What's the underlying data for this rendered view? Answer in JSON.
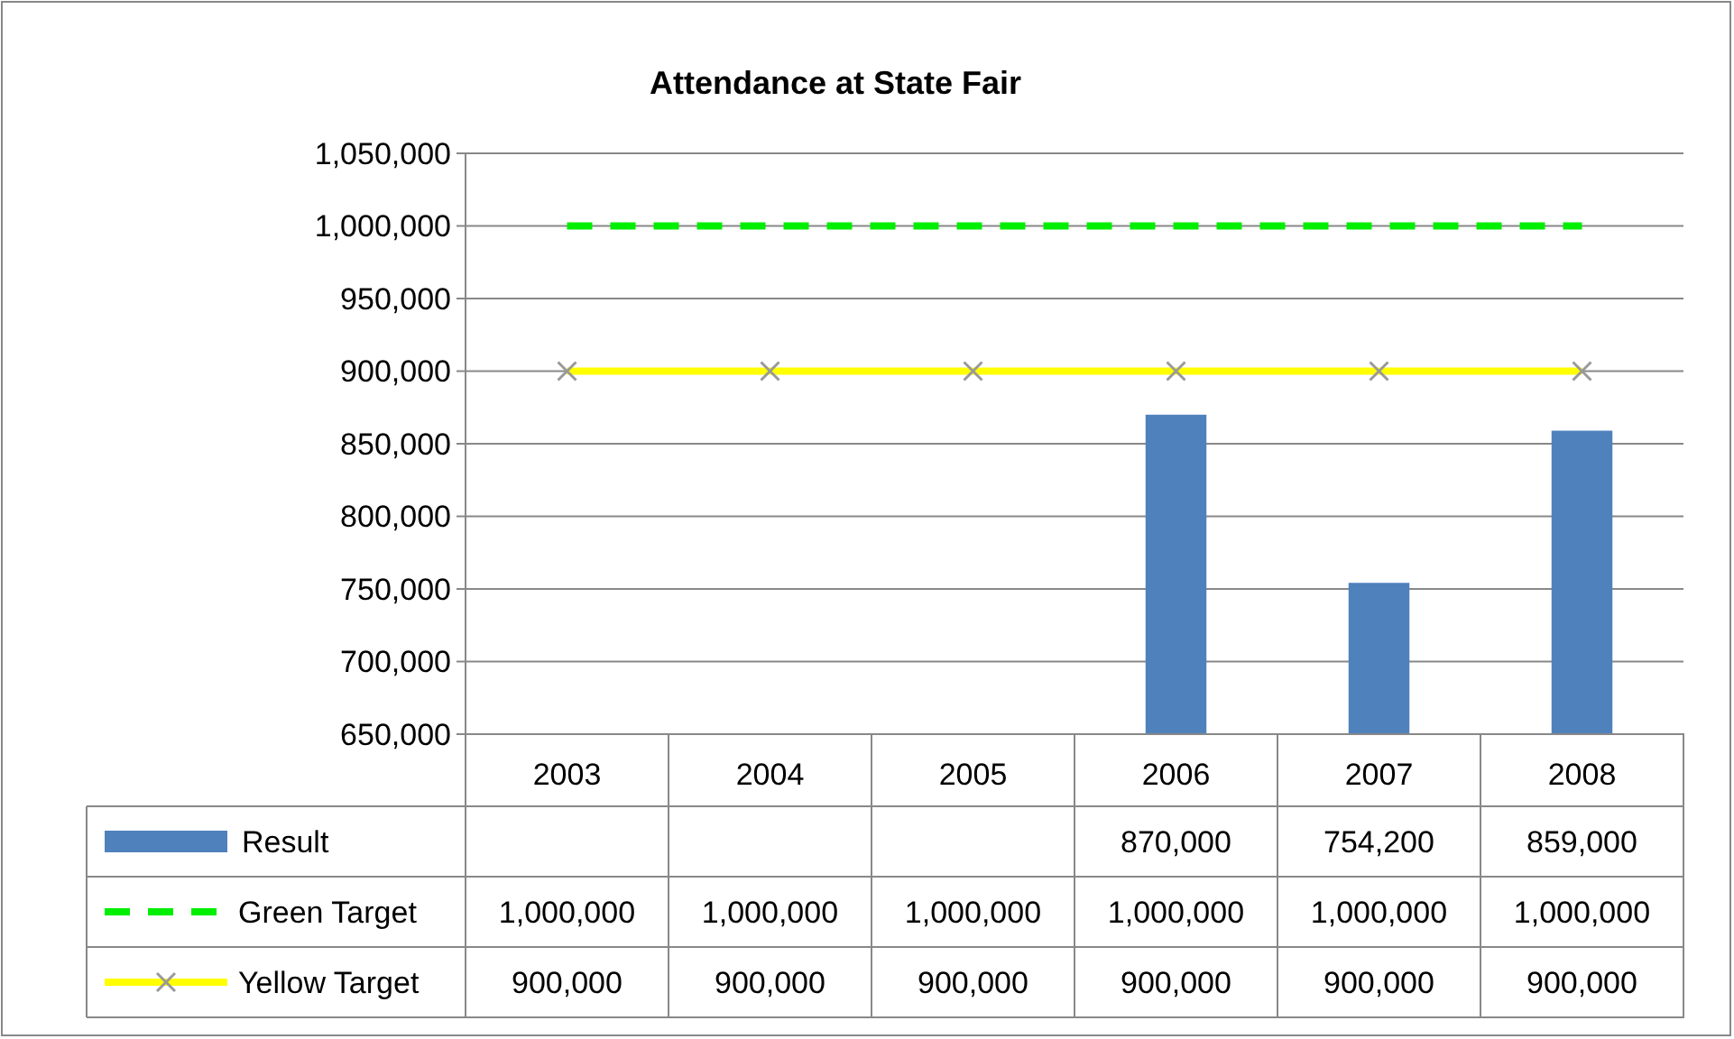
{
  "chart_data": {
    "type": "bar",
    "title": "Attendance at State Fair",
    "categories": [
      "2003",
      "2004",
      "2005",
      "2006",
      "2007",
      "2008"
    ],
    "series": [
      {
        "name": "Result",
        "color": "#4f81bd",
        "values": [
          null,
          null,
          null,
          870000,
          754200,
          859000
        ],
        "value_labels": [
          null,
          null,
          null,
          "870,000",
          "754,200",
          "859,000"
        ]
      },
      {
        "name": "Green Target",
        "type": "line",
        "color": "#00ee00",
        "line_style": "dashed",
        "marker": "none",
        "values": [
          1000000,
          1000000,
          1000000,
          1000000,
          1000000,
          1000000
        ],
        "value_labels": [
          "1,000,000",
          "1,000,000",
          "1,000,000",
          "1,000,000",
          "1,000,000",
          "1,000,000"
        ]
      },
      {
        "name": "Yellow Target",
        "type": "line",
        "color": "#ffff00",
        "line_style": "solid",
        "marker": "cross",
        "values": [
          900000,
          900000,
          900000,
          900000,
          900000,
          900000
        ],
        "value_labels": [
          "900,000",
          "900,000",
          "900,000",
          "900,000",
          "900,000",
          "900,000"
        ]
      }
    ],
    "ylim": [
      650000,
      1050000
    ],
    "yticks": [
      {
        "value": 650000,
        "label": "650,000"
      },
      {
        "value": 700000,
        "label": "700,000"
      },
      {
        "value": 750000,
        "label": "750,000"
      },
      {
        "value": 800000,
        "label": "800,000"
      },
      {
        "value": 850000,
        "label": "850,000"
      },
      {
        "value": 900000,
        "label": "900,000"
      },
      {
        "value": 950000,
        "label": "950,000"
      },
      {
        "value": 1000000,
        "label": "1,000,000"
      },
      {
        "value": 1050000,
        "label": "1,050,000"
      }
    ],
    "grid": "y",
    "legend": "bottom"
  }
}
